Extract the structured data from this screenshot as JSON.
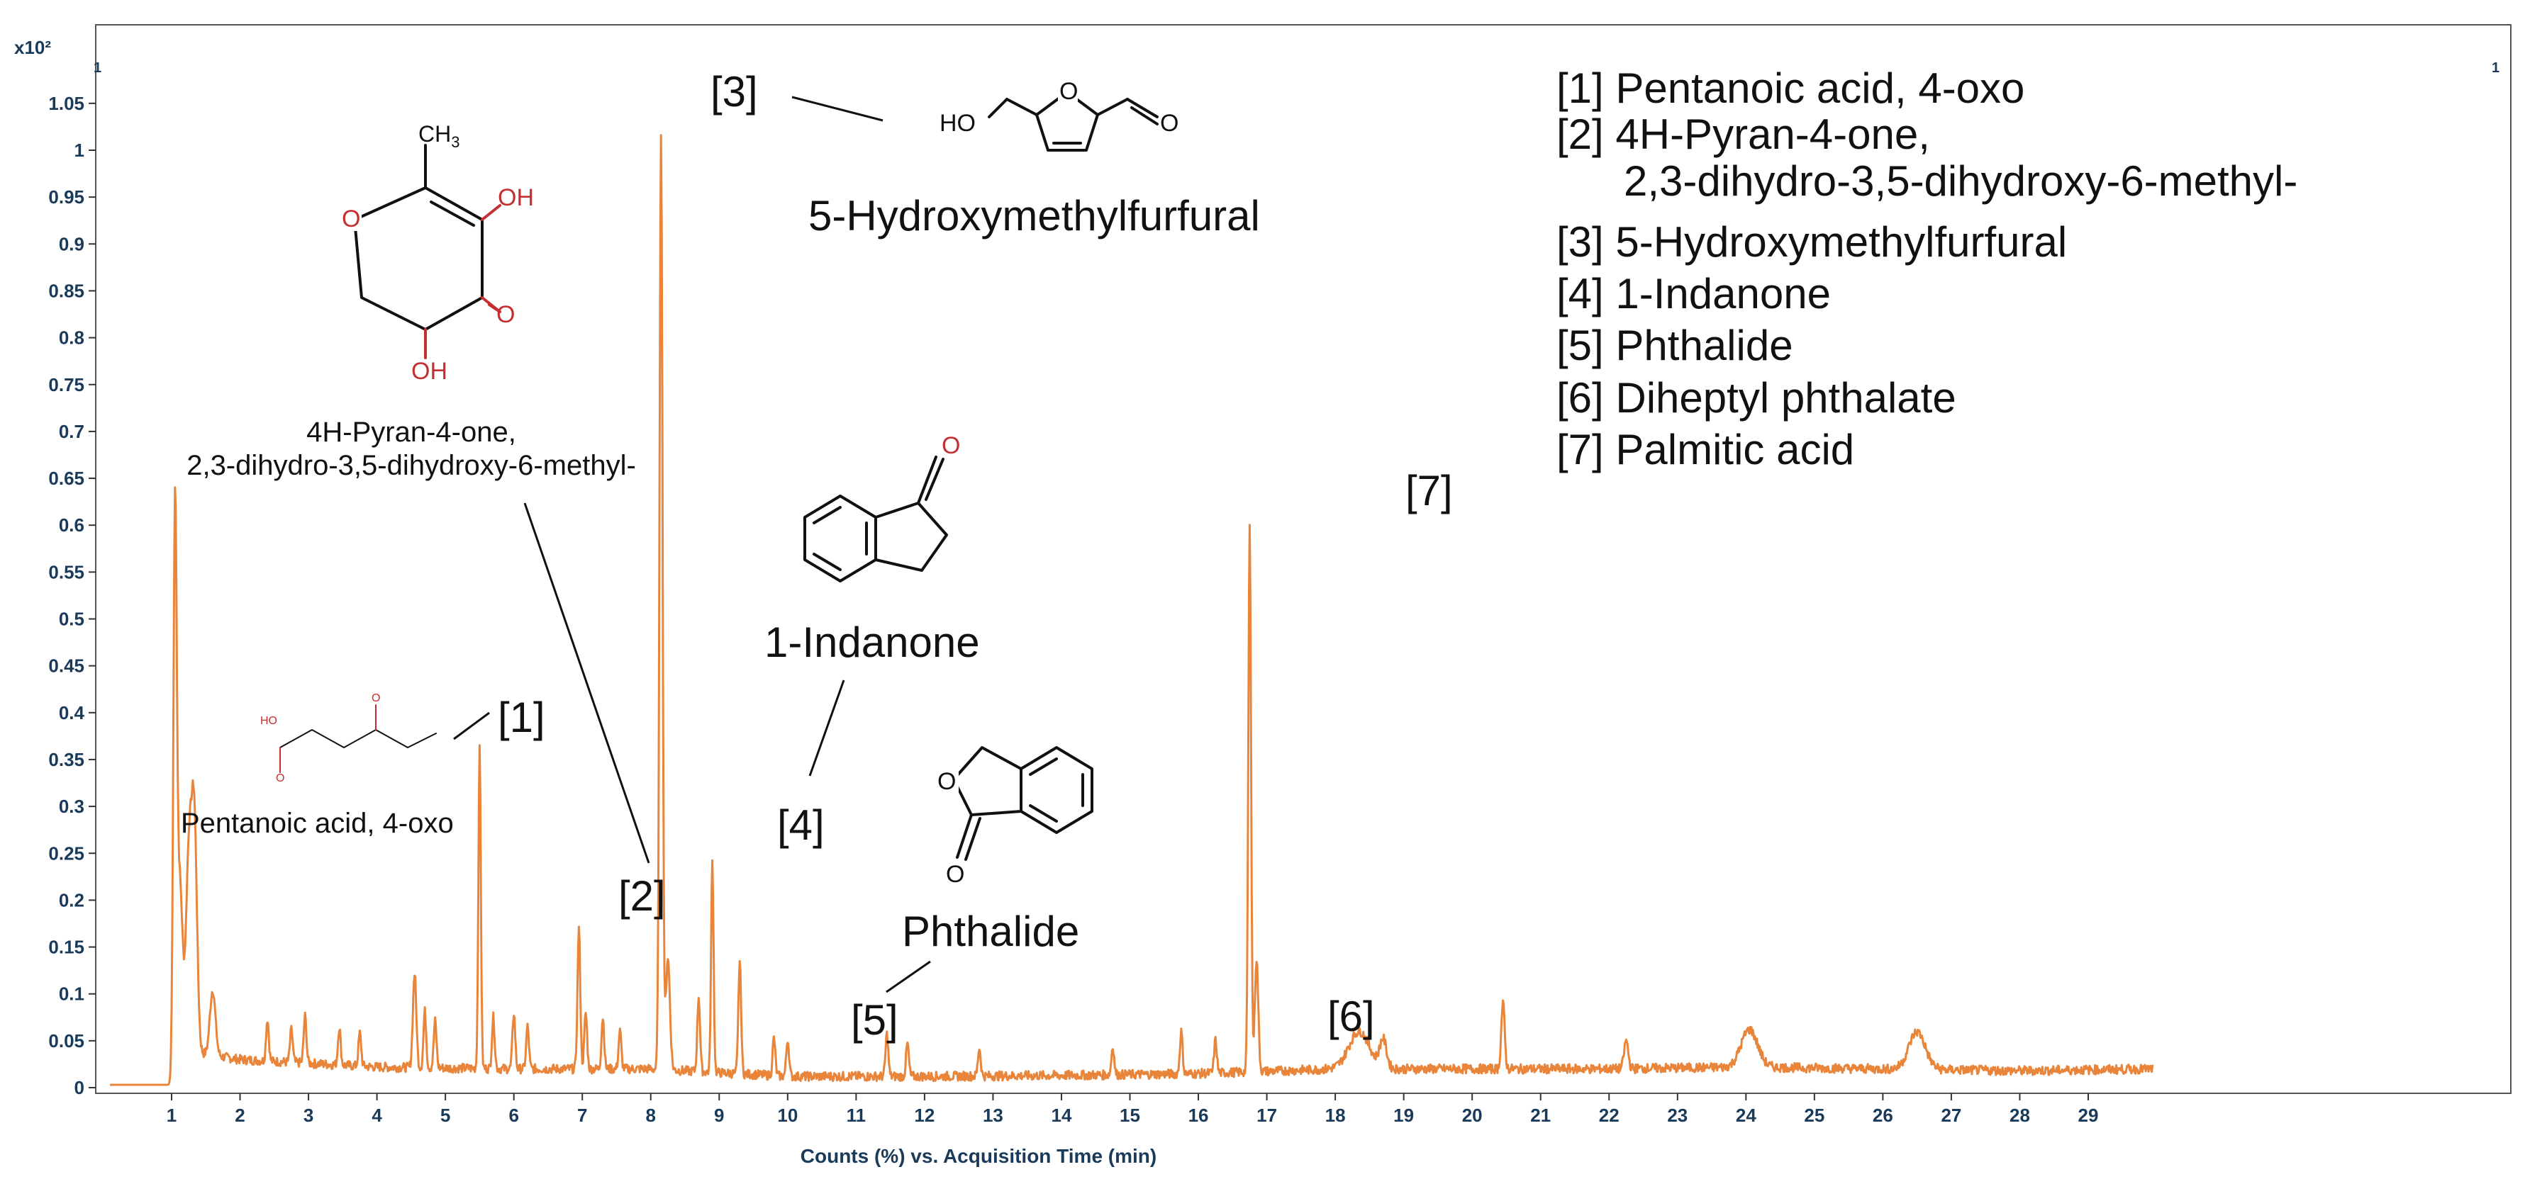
{
  "chart_data": {
    "type": "line",
    "xlabel": "Counts (%) vs. Acquisition Time (min)",
    "ylabel_multiplier": "x10²",
    "xlim": [
      0.1,
      30
    ],
    "ylim": [
      0,
      1.1
    ],
    "x_ticks": [
      1,
      2,
      3,
      4,
      5,
      6,
      7,
      8,
      9,
      10,
      11,
      12,
      13,
      14,
      15,
      16,
      17,
      18,
      19,
      20,
      21,
      22,
      23,
      24,
      25,
      26,
      27,
      28,
      29
    ],
    "y_ticks": [
      0,
      0.05,
      0.1,
      0.15,
      0.2,
      0.25,
      0.3,
      0.35,
      0.4,
      0.45,
      0.5,
      0.55,
      0.6,
      0.65,
      0.7,
      0.75,
      0.8,
      0.85,
      0.9,
      0.95,
      1,
      1.05
    ],
    "y_tick_labels": [
      "0",
      "0.05",
      "0.1",
      "0.15",
      "0.2",
      "0.25",
      "0.3",
      "0.35",
      "0.4",
      "0.45",
      "0.5",
      "0.55",
      "0.6",
      "0.65",
      "0.7",
      "0.75",
      "0.8",
      "0.85",
      "0.9",
      "0.95",
      "1",
      "1.05"
    ],
    "color": "#e8853a",
    "baseline": [
      [
        0.1,
        0.003
      ],
      [
        1.0,
        0.003
      ],
      [
        1.1,
        0.04
      ],
      [
        2,
        0.03
      ],
      [
        4,
        0.022
      ],
      [
        6,
        0.02
      ],
      [
        8,
        0.02
      ],
      [
        10,
        0.012
      ],
      [
        12,
        0.012
      ],
      [
        14,
        0.013
      ],
      [
        16,
        0.015
      ],
      [
        18,
        0.02
      ],
      [
        20,
        0.02
      ],
      [
        22,
        0.02
      ],
      [
        24,
        0.022
      ],
      [
        26,
        0.02
      ],
      [
        28,
        0.018
      ],
      [
        30,
        0.02
      ]
    ],
    "peaks": [
      {
        "x": 1.05,
        "y": 0.58,
        "w": 0.025
      },
      {
        "x": 1.12,
        "y": 0.18,
        "w": 0.04
      },
      {
        "x": 1.25,
        "y": 0.2,
        "w": 0.04
      },
      {
        "x": 1.33,
        "y": 0.25,
        "w": 0.04
      },
      {
        "x": 1.6,
        "y": 0.07,
        "w": 0.04
      },
      {
        "x": 2.4,
        "y": 0.045,
        "w": 0.02
      },
      {
        "x": 2.75,
        "y": 0.035,
        "w": 0.02
      },
      {
        "x": 2.95,
        "y": 0.05,
        "w": 0.02
      },
      {
        "x": 3.45,
        "y": 0.04,
        "w": 0.02
      },
      {
        "x": 3.75,
        "y": 0.035,
        "w": 0.02
      },
      {
        "x": 4.55,
        "y": 0.1,
        "w": 0.025
      },
      {
        "x": 4.7,
        "y": 0.06,
        "w": 0.02
      },
      {
        "x": 4.85,
        "y": 0.05,
        "w": 0.02
      },
      {
        "x": 5.5,
        "y": 0.34,
        "w": 0.018
      },
      {
        "x": 5.7,
        "y": 0.055,
        "w": 0.02
      },
      {
        "x": 6.0,
        "y": 0.06,
        "w": 0.02
      },
      {
        "x": 6.2,
        "y": 0.045,
        "w": 0.02
      },
      {
        "x": 6.95,
        "y": 0.15,
        "w": 0.02
      },
      {
        "x": 7.05,
        "y": 0.06,
        "w": 0.02
      },
      {
        "x": 7.3,
        "y": 0.055,
        "w": 0.02
      },
      {
        "x": 7.55,
        "y": 0.04,
        "w": 0.02
      },
      {
        "x": 8.15,
        "y": 1.0,
        "w": 0.022
      },
      {
        "x": 8.25,
        "y": 0.12,
        "w": 0.03
      },
      {
        "x": 8.7,
        "y": 0.08,
        "w": 0.02
      },
      {
        "x": 8.9,
        "y": 0.225,
        "w": 0.018
      },
      {
        "x": 9.3,
        "y": 0.12,
        "w": 0.02
      },
      {
        "x": 9.8,
        "y": 0.04,
        "w": 0.02
      },
      {
        "x": 10.0,
        "y": 0.04,
        "w": 0.02
      },
      {
        "x": 11.45,
        "y": 0.045,
        "w": 0.02
      },
      {
        "x": 11.75,
        "y": 0.035,
        "w": 0.02
      },
      {
        "x": 12.8,
        "y": 0.03,
        "w": 0.02
      },
      {
        "x": 14.75,
        "y": 0.03,
        "w": 0.02
      },
      {
        "x": 15.75,
        "y": 0.045,
        "w": 0.02
      },
      {
        "x": 16.25,
        "y": 0.035,
        "w": 0.02
      },
      {
        "x": 16.75,
        "y": 0.58,
        "w": 0.02
      },
      {
        "x": 16.85,
        "y": 0.12,
        "w": 0.025
      },
      {
        "x": 18.35,
        "y": 0.04,
        "w": 0.15
      },
      {
        "x": 18.7,
        "y": 0.03,
        "w": 0.05
      },
      {
        "x": 20.45,
        "y": 0.07,
        "w": 0.025
      },
      {
        "x": 22.25,
        "y": 0.03,
        "w": 0.03
      },
      {
        "x": 24.05,
        "y": 0.04,
        "w": 0.12
      },
      {
        "x": 26.5,
        "y": 0.04,
        "w": 0.12
      }
    ]
  },
  "peak_labels": [
    "[1]",
    "[2]",
    "[3]",
    "[4]",
    "[5]",
    "[6]",
    "[7]"
  ],
  "compound_names": {
    "c1": "Pentanoic acid, 4-oxo",
    "c2_line1": "4H-Pyran-4-one,",
    "c2_line2": "2,3-dihydro-3,5-dihydroxy-6-methyl-",
    "c3": "5-Hydroxymethylfurfural",
    "c4": "1-Indanone",
    "c5": "Phthalide"
  },
  "legend": [
    "[1] Pentanoic acid, 4-oxo",
    "[2] 4H-Pyran-4-one,",
    "2,3-dihydro-3,5-dihydroxy-6-methyl-",
    "[3] 5-Hydroxymethylfurfural",
    "[4] 1-Indanone",
    "[5] Phthalide",
    "[6] Diheptyl phthalate",
    "[7] Palmitic acid"
  ],
  "atoms": {
    "ch3": "CH",
    "ch3_sub": "3",
    "oh": "OH",
    "o": "O",
    "ho": "HO"
  },
  "corner_marks": [
    "1",
    "1"
  ]
}
